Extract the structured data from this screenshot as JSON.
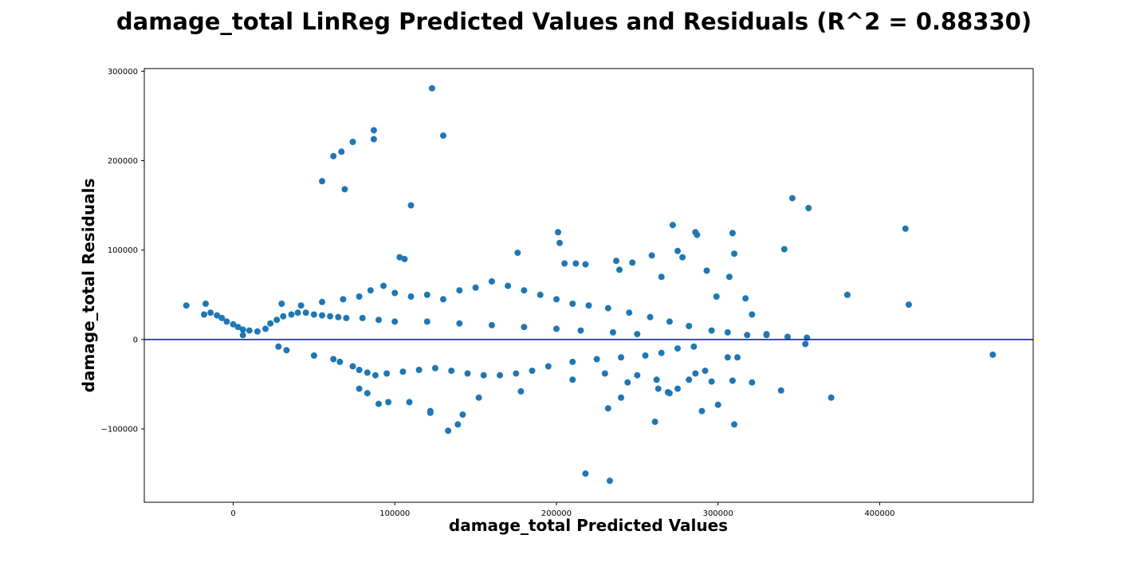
{
  "chart_data": {
    "type": "scatter",
    "title": "damage_total LinReg Predicted Values and Residuals (R^2 = 0.88330)",
    "xlabel": "damage_total Predicted Values",
    "ylabel": "damage_total Residuals",
    "xlim": [
      -55000,
      495000
    ],
    "ylim": [
      -182000,
      303000
    ],
    "x_ticks": [
      0,
      100000,
      200000,
      300000,
      400000
    ],
    "x_tick_labels": [
      "0",
      "100000",
      "200000",
      "300000",
      "400000"
    ],
    "y_ticks": [
      -100000,
      0,
      100000,
      200000,
      300000
    ],
    "y_tick_labels": [
      "−100000",
      "0",
      "100000",
      "200000",
      "300000"
    ],
    "grid": false,
    "reference_line": {
      "y": 0
    },
    "colors": {
      "points": "#1f77b4",
      "reference_line": "#0000ff"
    },
    "series": [
      {
        "x": [
          -29000,
          -17000,
          -18000,
          -14000,
          -10000,
          -7000,
          -4000,
          0,
          3000,
          6000,
          10000,
          15000,
          20000,
          23000,
          27000,
          31000,
          36000,
          40000,
          45000,
          50000,
          55000,
          60000,
          65000,
          70000,
          80000,
          90000,
          100000,
          120000,
          140000,
          160000,
          180000,
          200000,
          215000,
          235000,
          250000,
          6000,
          28000,
          33000,
          50000,
          62000,
          66000,
          74000,
          78000,
          83000,
          88000,
          95000,
          105000,
          115000,
          125000,
          135000,
          145000,
          155000,
          165000,
          175000,
          185000,
          195000,
          210000,
          225000,
          240000,
          255000,
          265000,
          275000,
          285000,
          30000,
          42000,
          55000,
          68000,
          78000,
          85000,
          93000,
          100000,
          110000,
          120000,
          130000,
          140000,
          150000,
          160000,
          170000,
          180000,
          190000,
          200000,
          210000,
          220000,
          232000,
          245000,
          258000,
          270000,
          282000,
          296000,
          306000,
          318000,
          330000,
          343000,
          355000,
          62000,
          67000,
          69000,
          74000,
          87000,
          87000,
          123000,
          130000,
          55000,
          110000,
          103000,
          106000,
          176000,
          201000,
          202000,
          205000,
          212000,
          218000,
          237000,
          239000,
          247000,
          259000,
          265000,
          272000,
          275000,
          278000,
          286000,
          287000,
          293000,
          299000,
          309000,
          310000,
          307000,
          317000,
          321000,
          330000,
          341000,
          346000,
          356000,
          380000,
          416000,
          418000,
          470000,
          354000,
          306000,
          292000,
          262000,
          250000,
          230000,
          210000,
          178000,
          152000,
          122000,
          109000,
          90000,
          83000,
          78000,
          96000,
          133000,
          139000,
          142000,
          122000,
          218000,
          233000,
          261000,
          269000,
          286000,
          296000,
          310000,
          321000,
          339000,
          370000,
          232000,
          240000,
          244000,
          263000,
          282000,
          270000,
          275000,
          290000,
          300000,
          309000,
          312000
        ],
        "y": [
          38000,
          40000,
          28000,
          30000,
          27000,
          24000,
          20000,
          17000,
          14000,
          11000,
          10000,
          9000,
          12000,
          18000,
          22000,
          26000,
          28000,
          30000,
          30000,
          28000,
          27000,
          26000,
          25000,
          24000,
          24000,
          22000,
          20000,
          20000,
          18000,
          16000,
          14000,
          12000,
          10000,
          8000,
          6000,
          5000,
          -8000,
          -12000,
          -18000,
          -22000,
          -25000,
          -30000,
          -34000,
          -37000,
          -40000,
          -38000,
          -36000,
          -34000,
          -32000,
          -35000,
          -38000,
          -40000,
          -40000,
          -38000,
          -35000,
          -30000,
          -25000,
          -22000,
          -20000,
          -18000,
          -15000,
          -10000,
          -8000,
          40000,
          38000,
          42000,
          45000,
          48000,
          55000,
          60000,
          52000,
          48000,
          50000,
          45000,
          55000,
          58000,
          65000,
          60000,
          55000,
          50000,
          45000,
          40000,
          38000,
          35000,
          30000,
          25000,
          20000,
          15000,
          10000,
          8000,
          5000,
          5000,
          3000,
          2000,
          205000,
          210000,
          168000,
          221000,
          224000,
          234000,
          281000,
          228000,
          177000,
          150000,
          92000,
          90000,
          97000,
          120000,
          108000,
          85000,
          85000,
          84000,
          88000,
          78000,
          86000,
          94000,
          70000,
          128000,
          99000,
          92000,
          120000,
          117000,
          77000,
          48000,
          119000,
          96000,
          70000,
          46000,
          28000,
          6000,
          101000,
          158000,
          147000,
          50000,
          124000,
          39000,
          -17000,
          -5000,
          -20000,
          -35000,
          -45000,
          -40000,
          -38000,
          -45000,
          -58000,
          -65000,
          -80000,
          -70000,
          -72000,
          -60000,
          -55000,
          -70000,
          -102000,
          -95000,
          -84000,
          -82000,
          -150000,
          -158000,
          -92000,
          -59000,
          -38000,
          -47000,
          -95000,
          -48000,
          -57000,
          -65000,
          -77000,
          -65000,
          -48000,
          -55000,
          -45000,
          -60000,
          -55000,
          -80000,
          -73000,
          -46000,
          -20000
        ]
      }
    ]
  }
}
